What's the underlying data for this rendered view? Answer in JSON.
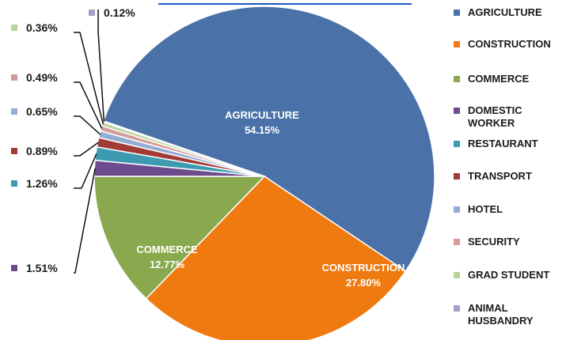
{
  "chart_data": {
    "type": "pie",
    "categories": [
      "AGRICULTURE",
      "CONSTRUCTION",
      "COMMERCE",
      "DOMESTIC WORKER",
      "RESTAURANT",
      "TRANSPORT",
      "HOTEL",
      "SECURITY",
      "GRAD STUDENT",
      "ANIMAL HUSBANDRY"
    ],
    "values": [
      54.15,
      27.8,
      12.77,
      1.51,
      1.26,
      0.89,
      0.65,
      0.49,
      0.36,
      0.12
    ],
    "value_labels": [
      "54.15%",
      "27.80%",
      "12.77%",
      "1.51%",
      "1.26%",
      "0.89%",
      "0.65%",
      "0.49%",
      "0.36%",
      "0.12%"
    ],
    "colors": [
      "#4a72a8",
      "#ef7a10",
      "#8aa84d",
      "#6e4b8c",
      "#3c9bb0",
      "#a23a35",
      "#93aed5",
      "#d69a9a",
      "#b7d49a",
      "#a99cc8"
    ],
    "legend_position": "right"
  }
}
